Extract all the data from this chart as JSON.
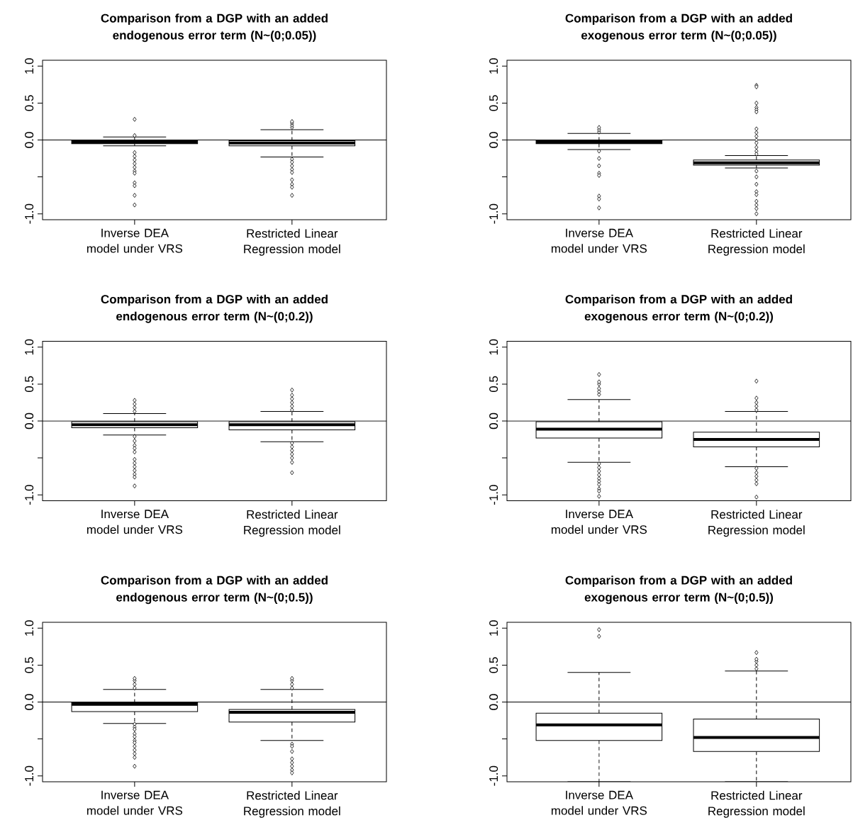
{
  "chart_data": [
    {
      "type": "box",
      "title": "Comparison from a DGP with an added endogenous error term (N~(0;0.05))",
      "categories": [
        "Inverse DEA model under VRS",
        "Restricted Linear Regression model"
      ],
      "marker": "diamond",
      "ylim": [
        -1.08,
        1.08
      ],
      "yticks": [
        {
          "value": -1,
          "label": "-1.0"
        },
        {
          "value": -0.5,
          "label": null
        },
        {
          "value": 0,
          "label": "0.0"
        },
        {
          "value": 0.5,
          "label": "0.5"
        },
        {
          "value": 1,
          "label": "1.0"
        }
      ],
      "ref_lines": [
        {
          "axis": "y",
          "value": 0
        }
      ],
      "boxes": [
        {
          "low": -0.08,
          "q1": -0.05,
          "median": -0.03,
          "q3": -0.01,
          "high": 0.04,
          "outliers": [
            0.28,
            0.06,
            -0.17,
            -0.22,
            -0.27,
            -0.32,
            -0.37,
            -0.42,
            -0.45,
            -0.58,
            -0.62,
            -0.75,
            -0.88
          ]
        },
        {
          "low": -0.23,
          "q1": -0.08,
          "median": -0.04,
          "q3": -0.01,
          "high": 0.14,
          "outliers": [
            0.17,
            0.2,
            0.23,
            0.25,
            -0.26,
            -0.3,
            -0.35,
            -0.4,
            -0.44,
            -0.54,
            -0.6,
            -0.64,
            -0.75
          ]
        }
      ]
    },
    {
      "type": "box",
      "title": "Comparison from a DGP with an added exogenous error term (N~(0;0.05))",
      "categories": [
        "Inverse DEA model under VRS",
        "Restricted Linear Regression model"
      ],
      "marker": "diamond",
      "ylim": [
        -1.08,
        1.08
      ],
      "yticks": [
        {
          "value": -1,
          "label": "-1.0"
        },
        {
          "value": -0.5,
          "label": null
        },
        {
          "value": 0,
          "label": "0.0"
        },
        {
          "value": 0.5,
          "label": "0.5"
        },
        {
          "value": 1,
          "label": "1.0"
        }
      ],
      "ref_lines": [
        {
          "axis": "y",
          "value": 0
        }
      ],
      "boxes": [
        {
          "low": -0.13,
          "q1": -0.05,
          "median": -0.03,
          "q3": -0.01,
          "high": 0.09,
          "outliers": [
            0.11,
            0.14,
            0.17,
            -0.15,
            -0.25,
            -0.35,
            -0.45,
            -0.48,
            -0.76,
            -0.8,
            -0.92
          ]
        },
        {
          "low": -0.38,
          "q1": -0.34,
          "median": -0.31,
          "q3": -0.27,
          "high": -0.21,
          "outliers": [
            0.74,
            0.72,
            0.5,
            0.44,
            0.41,
            0.38,
            0.15,
            0.1,
            0.05,
            0,
            -0.04,
            -0.1,
            -0.15,
            -0.19,
            -0.42,
            -0.5,
            -0.6,
            -0.7,
            -0.74,
            -0.83,
            -0.88,
            -0.93,
            -1.0
          ]
        }
      ]
    },
    {
      "type": "box",
      "title": "Comparison from a DGP with an added endogenous error term (N~(0;0.2))",
      "categories": [
        "Inverse DEA model under VRS",
        "Restricted Linear Regression model"
      ],
      "marker": "diamond",
      "ylim": [
        -1.08,
        1.08
      ],
      "yticks": [
        {
          "value": -1,
          "label": "-1.0"
        },
        {
          "value": -0.5,
          "label": null
        },
        {
          "value": 0,
          "label": "0.0"
        },
        {
          "value": 0.5,
          "label": "0.5"
        },
        {
          "value": 1,
          "label": "1.0"
        }
      ],
      "ref_lines": [
        {
          "axis": "y",
          "value": 0
        }
      ],
      "boxes": [
        {
          "low": -0.19,
          "q1": -0.09,
          "median": -0.05,
          "q3": -0.01,
          "high": 0.1,
          "outliers": [
            0.13,
            0.18,
            0.23,
            0.28,
            -0.21,
            -0.27,
            -0.33,
            -0.37,
            -0.42,
            -0.52,
            -0.57,
            -0.62,
            -0.67,
            -0.72,
            -0.76,
            -0.88
          ]
        },
        {
          "low": -0.28,
          "q1": -0.12,
          "median": -0.05,
          "q3": -0.01,
          "high": 0.13,
          "outliers": [
            0.15,
            0.2,
            0.25,
            0.3,
            0.35,
            0.42,
            -0.3,
            -0.35,
            -0.4,
            -0.45,
            -0.5,
            -0.56,
            -0.7
          ]
        }
      ]
    },
    {
      "type": "box",
      "title": "Comparison from a DGP with an added exogenous error term (N~(0;0.2))",
      "categories": [
        "Inverse DEA model under VRS",
        "Restricted Linear Regression model"
      ],
      "marker": "diamond",
      "ylim": [
        -1.08,
        1.08
      ],
      "yticks": [
        {
          "value": -1,
          "label": "-1.0"
        },
        {
          "value": -0.5,
          "label": null
        },
        {
          "value": 0,
          "label": "0.0"
        },
        {
          "value": 0.5,
          "label": "0.5"
        },
        {
          "value": 1,
          "label": "1.0"
        }
      ],
      "ref_lines": [
        {
          "axis": "y",
          "value": 0
        }
      ],
      "boxes": [
        {
          "low": -0.56,
          "q1": -0.23,
          "median": -0.11,
          "q3": -0.01,
          "high": 0.29,
          "outliers": [
            0.36,
            0.4,
            0.44,
            0.5,
            0.53,
            0.63,
            -0.58,
            -0.63,
            -0.68,
            -0.73,
            -0.78,
            -0.82,
            -0.86,
            -0.92,
            -0.95,
            -1.02
          ]
        },
        {
          "low": -0.62,
          "q1": -0.35,
          "median": -0.25,
          "q3": -0.15,
          "high": 0.13,
          "outliers": [
            0.15,
            0.2,
            0.25,
            0.31,
            0.54,
            -0.64,
            -0.7,
            -0.75,
            -0.8,
            -0.85,
            -1.03
          ]
        }
      ]
    },
    {
      "type": "box",
      "title": "Comparison from a DGP with an added endogenous error term (N~(0;0.5))",
      "categories": [
        "Inverse DEA model under VRS",
        "Restricted Linear Regression model"
      ],
      "marker": "diamond",
      "ylim": [
        -1.08,
        1.08
      ],
      "yticks": [
        {
          "value": -1,
          "label": "-1.0"
        },
        {
          "value": -0.5,
          "label": null
        },
        {
          "value": 0,
          "label": "0.0"
        },
        {
          "value": 0.5,
          "label": "0.5"
        },
        {
          "value": 1,
          "label": "1.0"
        }
      ],
      "ref_lines": [
        {
          "axis": "y",
          "value": 0
        }
      ],
      "boxes": [
        {
          "low": -0.29,
          "q1": -0.13,
          "median": -0.03,
          "q3": -0.01,
          "high": 0.17,
          "outliers": [
            0.19,
            0.24,
            0.29,
            0.32,
            -0.3,
            -0.34,
            -0.37,
            -0.43,
            -0.47,
            -0.52,
            -0.55,
            -0.6,
            -0.65,
            -0.7,
            -0.75,
            -0.87
          ]
        },
        {
          "low": -0.52,
          "q1": -0.27,
          "median": -0.14,
          "q3": -0.1,
          "high": 0.17,
          "outliers": [
            0.19,
            0.24,
            0.29,
            0.32,
            -0.57,
            -0.6,
            -0.67,
            -0.77,
            -0.82,
            -0.87,
            -0.92,
            -0.96
          ]
        }
      ]
    },
    {
      "type": "box",
      "title": "Comparison from a DGP with an added exogenous error term (N~(0;0.5))",
      "categories": [
        "Inverse DEA model under VRS",
        "Restricted Linear Regression model"
      ],
      "marker": "diamond",
      "ylim": [
        -1.08,
        1.08
      ],
      "yticks": [
        {
          "value": -1,
          "label": "-1.0"
        },
        {
          "value": -0.5,
          "label": null
        },
        {
          "value": 0,
          "label": "0.0"
        },
        {
          "value": 0.5,
          "label": "0.5"
        },
        {
          "value": 1,
          "label": "1.0"
        }
      ],
      "ref_lines": [
        {
          "axis": "y",
          "value": 0
        }
      ],
      "boxes": [
        {
          "low": -1.08,
          "q1": -0.52,
          "median": -0.31,
          "q3": -0.15,
          "high": 0.4,
          "outliers": [
            0.89,
            0.98
          ]
        },
        {
          "low": -1.08,
          "q1": -0.67,
          "median": -0.48,
          "q3": -0.23,
          "high": 0.42,
          "outliers": [
            0.45,
            0.5,
            0.55,
            0.58,
            0.67
          ]
        }
      ]
    }
  ]
}
